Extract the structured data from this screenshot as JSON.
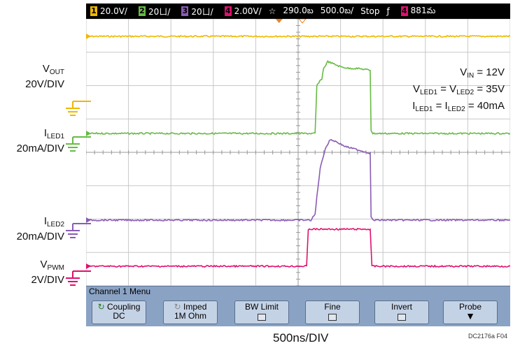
{
  "topbar": {
    "ch1_num": "1",
    "ch1_scale": "20.0V/",
    "ch2_num": "2",
    "ch2_scale": "20ㄩ/",
    "ch3_num": "3",
    "ch3_scale": "20ㄩ/",
    "ch4_num": "4",
    "ch4_scale": "2.00V/",
    "trigger_icon": "☆",
    "time_pos": "290.0బ",
    "time_scale": "500.0బ/",
    "run_state": "Stop",
    "edge_icon": "ƒ",
    "trig_ch": "4",
    "trig_level": "881మ"
  },
  "labels": {
    "vout_main": "V",
    "vout_sub": "OUT",
    "vout_div": "20V/DIV",
    "iled1_main": "I",
    "iled1_sub": "LED1",
    "iled1_div": "20mA/DIV",
    "iled2_main": "I",
    "iled2_sub": "LED2",
    "iled2_div": "20mA/DIV",
    "vpwm_main": "V",
    "vpwm_sub": "PWM",
    "vpwm_div": "2V/DIV"
  },
  "annotation": {
    "l1_a": "V",
    "l1_a_sub": "IN",
    "l1_b": " = 12V",
    "l2_a": "V",
    "l2_a_sub": "LED1",
    "l2_b": " = V",
    "l2_b_sub": "LED2",
    "l2_c": " = 35V",
    "l3_a": "I",
    "l3_a_sub": "LED1",
    "l3_b": " = I",
    "l3_b_sub": "LED2",
    "l3_c": " = 40mA"
  },
  "menu": {
    "title": "Channel 1  Menu",
    "coupling_label": "Coupling",
    "coupling_value": "DC",
    "imped_label": "Imped",
    "imped_value": "1M Ohm",
    "bwlimit_label": "BW Limit",
    "fine_label": "Fine",
    "invert_label": "Invert",
    "probe_label": "Probe"
  },
  "footer": {
    "timebase": "500ns/DIV",
    "fig_id": "DC2176a F04"
  },
  "colors": {
    "ch1": "#f0b800",
    "ch2": "#66bb44",
    "ch3": "#8a5cb4",
    "ch4": "#e0106e",
    "grid": "#c8c8c8",
    "menu_bg": "#8aa3c4"
  },
  "chart_data": {
    "type": "line",
    "xlabel": "500ns/DIV",
    "x_unit": "ns",
    "xlim": [
      0,
      5000
    ],
    "grid": true,
    "series": [
      {
        "name": "VOUT",
        "scale": "20V/DIV",
        "x": [
          0,
          5000
        ],
        "y": [
          0,
          0
        ]
      },
      {
        "name": "ILED1",
        "scale": "20mA/DIV",
        "x": [
          0,
          2700,
          2720,
          2780,
          2800,
          2850,
          2950,
          3000,
          3100,
          3200,
          3350,
          3360,
          3380,
          5000
        ],
        "y": [
          0,
          0,
          28,
          32,
          38,
          42,
          40,
          39,
          38,
          38,
          37,
          2,
          0,
          0
        ]
      },
      {
        "name": "ILED2",
        "scale": "20mA/DIV",
        "x": [
          0,
          2650,
          2700,
          2720,
          2760,
          2820,
          2880,
          2950,
          3050,
          3150,
          3250,
          3350,
          3360,
          3380,
          5000
        ],
        "y": [
          0,
          0,
          5,
          20,
          45,
          62,
          70,
          68,
          64,
          62,
          60,
          58,
          3,
          0,
          0
        ]
      },
      {
        "name": "VPWM",
        "scale": "2V/DIV",
        "x": [
          0,
          2600,
          2620,
          3350,
          3370,
          5000
        ],
        "y": [
          0,
          0,
          5,
          5,
          0,
          0
        ]
      }
    ]
  }
}
